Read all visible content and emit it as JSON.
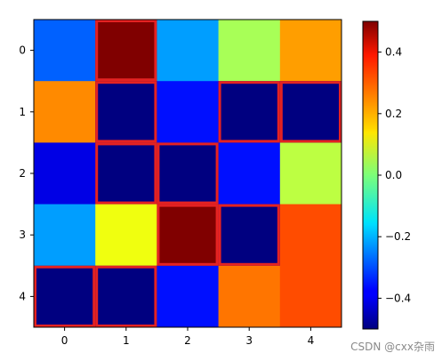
{
  "chart_data": {
    "type": "heatmap",
    "colormap": "jet",
    "vmin": -0.5,
    "vmax": 0.5,
    "x_ticks": [
      "0",
      "1",
      "2",
      "3",
      "4"
    ],
    "y_ticks": [
      "0",
      "1",
      "2",
      "3",
      "4"
    ],
    "values": [
      [
        -0.28,
        0.5,
        -0.22,
        0.04,
        0.22
      ],
      [
        0.24,
        -0.5,
        -0.36,
        -0.5,
        -0.5
      ],
      [
        -0.4,
        -0.5,
        -0.5,
        -0.36,
        0.06
      ],
      [
        -0.22,
        0.11,
        0.5,
        -0.5,
        0.3
      ],
      [
        -0.5,
        -0.5,
        -0.36,
        0.26,
        0.3
      ]
    ],
    "highlighted_cells": [
      [
        0,
        1
      ],
      [
        1,
        1
      ],
      [
        1,
        3
      ],
      [
        1,
        4
      ],
      [
        2,
        1
      ],
      [
        2,
        2
      ],
      [
        3,
        2
      ],
      [
        3,
        3
      ],
      [
        4,
        0
      ],
      [
        4,
        1
      ]
    ],
    "highlight_color": "#e42222",
    "colorbar": {
      "ticks": [
        0.4,
        0.2,
        0.0,
        -0.2,
        -0.4
      ],
      "tick_labels": [
        "0.4",
        "0.2",
        "0.0",
        "−0.2",
        "−0.4"
      ]
    }
  },
  "watermark": "CSDN @cxx杂雨"
}
